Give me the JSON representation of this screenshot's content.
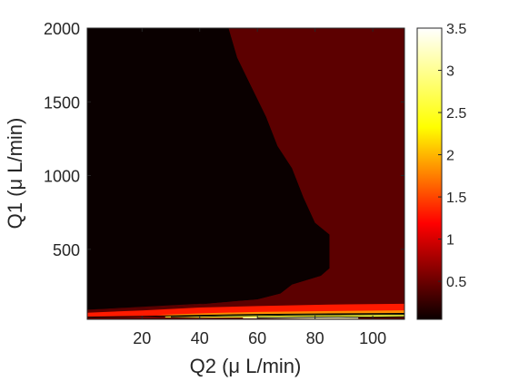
{
  "chart_data": {
    "type": "heatmap",
    "subtype": "filled-contour",
    "title": "",
    "xlabel": "Q2 (μ L/min)",
    "ylabel": "Q1 (μ L/min)",
    "xlim": [
      1,
      111
    ],
    "ylim": [
      25,
      2000
    ],
    "xticks": [
      20,
      40,
      60,
      80,
      100
    ],
    "xtick_labels": [
      "20",
      "40",
      "60",
      "80",
      "100"
    ],
    "yticks": [
      500,
      1000,
      1500,
      2000
    ],
    "ytick_labels": [
      "500",
      "1000",
      "1500",
      "2000"
    ],
    "grid": false,
    "colormap": "hot",
    "colorbar": {
      "location": "right",
      "range": [
        0.05,
        3.5
      ],
      "ticks": [
        0.5,
        1,
        1.5,
        2,
        2.5,
        3,
        3.5
      ],
      "tick_labels": [
        "0.5",
        "1",
        "1.5",
        "2",
        "2.5",
        "3",
        "3.5"
      ]
    },
    "regions": [
      {
        "level": 0.1,
        "color": "#0a0000",
        "boundary": [
          [
            1,
            2000
          ],
          [
            50,
            2000
          ],
          [
            53,
            1800
          ],
          [
            58,
            1600
          ],
          [
            63,
            1400
          ],
          [
            67,
            1200
          ],
          [
            72,
            1050
          ],
          [
            76,
            850
          ],
          [
            80,
            680
          ],
          [
            85,
            600
          ],
          [
            85,
            370
          ],
          [
            82,
            320
          ],
          [
            72,
            260
          ],
          [
            68,
            200
          ],
          [
            60,
            160
          ],
          [
            45,
            135
          ],
          [
            30,
            110
          ],
          [
            15,
            100
          ],
          [
            1,
            90
          ]
        ]
      },
      {
        "level": 0.45,
        "color": "#5c0000",
        "boundary": [
          [
            50,
            2000
          ],
          [
            111,
            2000
          ],
          [
            111,
            140
          ],
          [
            85,
            140
          ],
          [
            40,
            130
          ],
          [
            1,
            90
          ],
          [
            1,
            90
          ],
          [
            15,
            100
          ],
          [
            30,
            110
          ],
          [
            45,
            135
          ],
          [
            60,
            160
          ],
          [
            68,
            200
          ],
          [
            72,
            260
          ],
          [
            82,
            320
          ],
          [
            85,
            370
          ],
          [
            85,
            600
          ],
          [
            80,
            680
          ],
          [
            76,
            850
          ],
          [
            72,
            1050
          ],
          [
            67,
            1200
          ],
          [
            63,
            1400
          ],
          [
            58,
            1600
          ],
          [
            53,
            1800
          ]
        ]
      },
      {
        "level": 1.4,
        "color": "#ff1a00",
        "boundary": [
          [
            1,
            70
          ],
          [
            20,
            85
          ],
          [
            40,
            105
          ],
          [
            60,
            115
          ],
          [
            85,
            125
          ],
          [
            111,
            130
          ],
          [
            111,
            60
          ],
          [
            85,
            62
          ],
          [
            60,
            58
          ],
          [
            40,
            52
          ],
          [
            20,
            40
          ],
          [
            1,
            40
          ]
        ]
      },
      {
        "level": 2.3,
        "color": "#ff8c00",
        "boundary": [
          [
            25,
            55
          ],
          [
            45,
            68
          ],
          [
            60,
            75
          ],
          [
            80,
            80
          ],
          [
            111,
            86
          ],
          [
            111,
            55
          ],
          [
            80,
            58
          ],
          [
            60,
            55
          ],
          [
            40,
            48
          ]
        ]
      },
      {
        "level": 3.1,
        "color": "#ffff3a",
        "boundary": [
          [
            28,
            45
          ],
          [
            45,
            52
          ],
          [
            60,
            58
          ],
          [
            80,
            60
          ],
          [
            111,
            62
          ],
          [
            111,
            40
          ],
          [
            80,
            40
          ],
          [
            60,
            38
          ],
          [
            40,
            36
          ],
          [
            28,
            38
          ]
        ]
      },
      {
        "level": 3.5,
        "color": "#ffffc8",
        "boundary": [
          [
            55,
            38
          ],
          [
            70,
            40
          ],
          [
            85,
            42
          ],
          [
            95,
            42
          ],
          [
            95,
            30
          ],
          [
            80,
            30
          ],
          [
            65,
            31
          ],
          [
            55,
            32
          ]
        ]
      }
    ],
    "contour_lines": [
      [
        [
          1,
          40
        ],
        [
          20,
          45
        ],
        [
          40,
          52
        ],
        [
          60,
          58
        ],
        [
          85,
          62
        ],
        [
          111,
          65
        ]
      ],
      [
        [
          30,
          42
        ],
        [
          50,
          48
        ],
        [
          70,
          53
        ],
        [
          90,
          56
        ],
        [
          111,
          58
        ]
      ],
      [
        [
          60,
          36
        ],
        [
          75,
          40
        ],
        [
          88,
          41
        ],
        [
          100,
          40
        ],
        [
          111,
          43
        ]
      ]
    ]
  }
}
